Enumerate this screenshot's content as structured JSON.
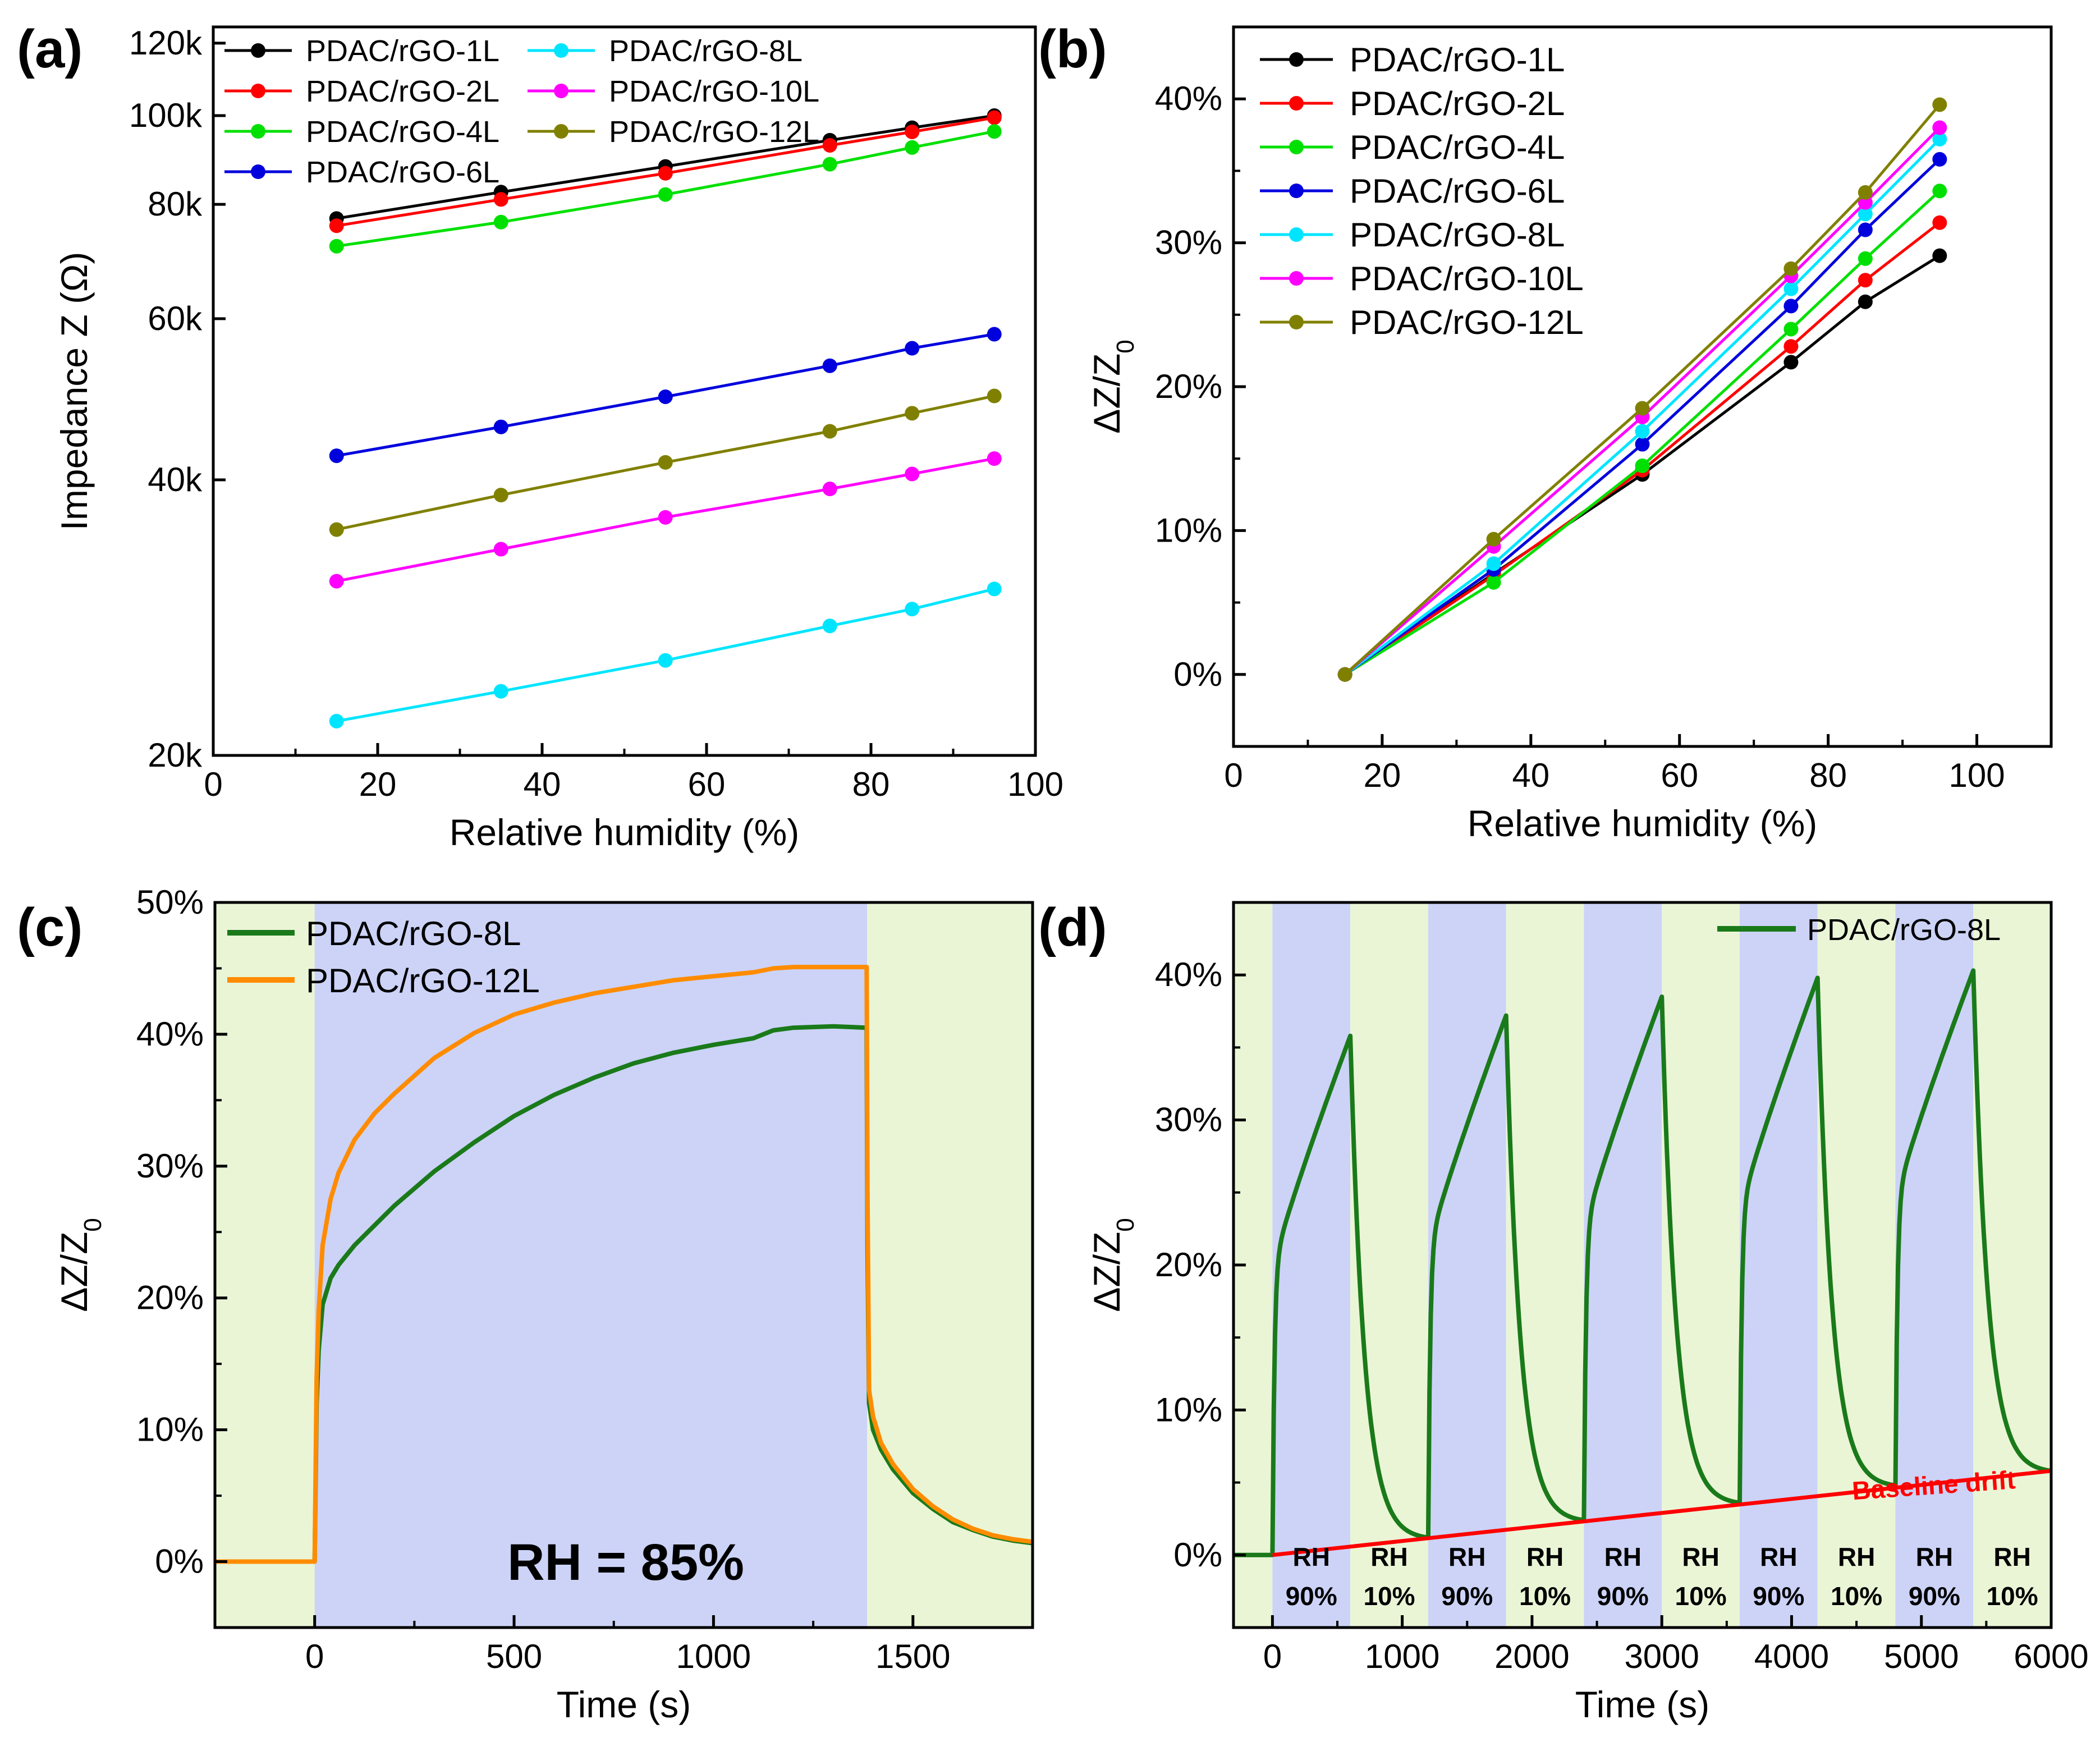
{
  "colors": {
    "1L": "#000000",
    "2L": "#ff0000",
    "4L": "#00e000",
    "6L": "#0000dd",
    "8L": "#00e5ff",
    "10L": "#ff00ff",
    "12L": "#808000",
    "green_dark": "#1a7a1a",
    "orange": "#ff8c00",
    "bg_blue": "#ccd3f7",
    "bg_green": "#eaf5d6",
    "drift": "#ff0000"
  },
  "chart_data": [
    {
      "panel": "(a)",
      "type": "line",
      "yscale": "log",
      "title": "",
      "xlabel": "Relative humidity (%)",
      "ylabel": "Impedance Z (Ω)",
      "xlim": [
        0,
        100
      ],
      "ylim": [
        20000,
        125000
      ],
      "xticks": [
        0,
        20,
        40,
        60,
        80,
        100
      ],
      "xtick_labels": [
        "0",
        "20",
        "40",
        "60",
        "80",
        "100"
      ],
      "yticks": [
        20000,
        40000,
        60000,
        80000,
        100000,
        120000
      ],
      "ytick_labels": [
        "20k",
        "40k",
        "60k",
        "80k",
        "100k",
        "120k"
      ],
      "legend_position": "top-left (two columns)",
      "x": [
        15,
        35,
        55,
        75,
        85,
        95
      ],
      "series": [
        {
          "name": "PDAC/rGO-1L",
          "color_key": "1L",
          "values": [
            77200,
            82500,
            88000,
            94000,
            97000,
            100000
          ]
        },
        {
          "name": "PDAC/rGO-2L",
          "color_key": "2L",
          "values": [
            75800,
            81000,
            86500,
            92800,
            96000,
            99500
          ]
        },
        {
          "name": "PDAC/rGO-4L",
          "color_key": "4L",
          "values": [
            72000,
            76500,
            82000,
            88500,
            92300,
            96100
          ]
        },
        {
          "name": "PDAC/rGO-6L",
          "color_key": "6L",
          "values": [
            42500,
            45700,
            49300,
            53300,
            55700,
            57700
          ]
        },
        {
          "name": "PDAC/rGO-8L",
          "color_key": "8L",
          "values": [
            21800,
            23500,
            25400,
            27700,
            28900,
            30400
          ]
        },
        {
          "name": "PDAC/rGO-10L",
          "color_key": "10L",
          "values": [
            31000,
            33600,
            36400,
            39100,
            40600,
            42200
          ]
        },
        {
          "name": "PDAC/rGO-12L",
          "color_key": "12L",
          "values": [
            35300,
            38500,
            41800,
            45200,
            47300,
            49400
          ]
        }
      ]
    },
    {
      "panel": "(b)",
      "type": "line",
      "title": "",
      "xlabel": "Relative humidity (%)",
      "ylabel_main": "ΔZ/Z",
      "ylabel_sub": "0",
      "xlim": [
        0,
        110
      ],
      "ylim": [
        -5,
        45
      ],
      "xticks": [
        0,
        20,
        40,
        60,
        80,
        100
      ],
      "xtick_labels": [
        "0",
        "20",
        "40",
        "60",
        "80",
        "100"
      ],
      "yticks": [
        0,
        10,
        20,
        30,
        40
      ],
      "ytick_labels": [
        "0%",
        "10%",
        "20%",
        "30%",
        "40%"
      ],
      "legend_position": "top-left",
      "x": [
        15,
        35,
        55,
        75,
        85,
        95
      ],
      "series": [
        {
          "name": "PDAC/rGO-1L",
          "color_key": "1L",
          "values": [
            0,
            7.0,
            13.9,
            21.7,
            25.9,
            29.1
          ]
        },
        {
          "name": "PDAC/rGO-2L",
          "color_key": "2L",
          "values": [
            0,
            6.9,
            14.2,
            22.8,
            27.4,
            31.4
          ]
        },
        {
          "name": "PDAC/rGO-4L",
          "color_key": "4L",
          "values": [
            0,
            6.4,
            14.5,
            24.0,
            28.9,
            33.6
          ]
        },
        {
          "name": "PDAC/rGO-6L",
          "color_key": "6L",
          "values": [
            0,
            7.3,
            16.0,
            25.6,
            30.9,
            35.8
          ]
        },
        {
          "name": "PDAC/rGO-8L",
          "color_key": "8L",
          "values": [
            0,
            7.7,
            16.9,
            26.8,
            32.0,
            37.2
          ]
        },
        {
          "name": "PDAC/rGO-10L",
          "color_key": "10L",
          "values": [
            0,
            8.9,
            17.9,
            27.7,
            32.8,
            38.0
          ]
        },
        {
          "name": "PDAC/rGO-12L",
          "color_key": "12L",
          "values": [
            0,
            9.4,
            18.5,
            28.2,
            33.5,
            39.6
          ]
        }
      ]
    },
    {
      "panel": "(c)",
      "type": "line",
      "title": "",
      "xlabel": "Time (s)",
      "ylabel_main": "ΔZ/Z",
      "ylabel_sub": "0",
      "xlim": [
        -250,
        1800
      ],
      "ylim": [
        -5,
        50
      ],
      "xticks": [
        0,
        500,
        1000,
        1500
      ],
      "xtick_labels": [
        "0",
        "500",
        "1000",
        "1500"
      ],
      "yticks": [
        0,
        10,
        20,
        30,
        40,
        50
      ],
      "ytick_labels": [
        "0%",
        "10%",
        "20%",
        "30%",
        "40%",
        "50%"
      ],
      "legend_position": "top-left",
      "annotation": "RH = 85%",
      "background_bands": [
        {
          "from": -250,
          "to": 0,
          "color_key": "bg_green"
        },
        {
          "from": 0,
          "to": 1385,
          "color_key": "bg_blue"
        },
        {
          "from": 1385,
          "to": 1800,
          "color_key": "bg_green"
        }
      ],
      "series": [
        {
          "name": "PDAC/rGO-8L",
          "color_key": "green_dark",
          "x": [
            -250,
            -1,
            0,
            5,
            10,
            20,
            40,
            60,
            100,
            150,
            200,
            300,
            400,
            500,
            600,
            700,
            800,
            900,
            1000,
            1100,
            1150,
            1200,
            1300,
            1384,
            1386,
            1390,
            1400,
            1420,
            1450,
            1500,
            1550,
            1600,
            1650,
            1700,
            1750,
            1800
          ],
          "y": [
            0,
            0,
            0,
            12,
            16,
            19.5,
            21.5,
            22.5,
            24,
            25.5,
            27,
            29.6,
            31.8,
            33.8,
            35.4,
            36.7,
            37.8,
            38.6,
            39.2,
            39.7,
            40.3,
            40.5,
            40.6,
            40.5,
            24,
            12,
            10,
            8.5,
            7,
            5.2,
            4,
            3,
            2.4,
            1.9,
            1.6,
            1.4
          ]
        },
        {
          "name": "PDAC/rGO-12L",
          "color_key": "orange",
          "x": [
            -250,
            -1,
            0,
            5,
            10,
            20,
            40,
            60,
            100,
            150,
            200,
            300,
            400,
            500,
            600,
            700,
            800,
            900,
            1000,
            1100,
            1150,
            1200,
            1300,
            1384,
            1386,
            1390,
            1400,
            1420,
            1450,
            1500,
            1550,
            1600,
            1650,
            1700,
            1750,
            1800
          ],
          "y": [
            0,
            0,
            0,
            14,
            19,
            24,
            27.5,
            29.5,
            32,
            34,
            35.5,
            38.2,
            40.1,
            41.5,
            42.4,
            43.1,
            43.6,
            44.1,
            44.4,
            44.7,
            45.0,
            45.1,
            45.1,
            45.1,
            28,
            13,
            11,
            9,
            7.4,
            5.5,
            4.2,
            3.2,
            2.5,
            2.0,
            1.7,
            1.5
          ]
        }
      ]
    },
    {
      "panel": "(d)",
      "type": "line",
      "title": "",
      "xlabel": "Time (s)",
      "ylabel_main": "ΔZ/Z",
      "ylabel_sub": "0",
      "xlim": [
        -300,
        6000
      ],
      "ylim": [
        -5,
        45
      ],
      "xticks": [
        0,
        1000,
        2000,
        3000,
        4000,
        5000,
        6000
      ],
      "xtick_labels": [
        "0",
        "1000",
        "2000",
        "3000",
        "4000",
        "5000",
        "6000"
      ],
      "yticks": [
        0,
        10,
        20,
        30,
        40
      ],
      "ytick_labels": [
        "0%",
        "10%",
        "20%",
        "30%",
        "40%"
      ],
      "legend_position": "top-right",
      "series_name": "PDAC/rGO-8L",
      "series_color_key": "green_dark",
      "cycles": [
        {
          "start": 0,
          "peak": 35.8,
          "end_value": 1.2
        },
        {
          "start": 1200,
          "peak": 37.2,
          "end_value": 2.4
        },
        {
          "start": 2400,
          "peak": 38.5,
          "end_value": 3.6
        },
        {
          "start": 3600,
          "peak": 39.8,
          "end_value": 4.8
        },
        {
          "start": 4800,
          "peak": 40.3,
          "end_value": 5.8
        }
      ],
      "half_period": 600,
      "baseline_drift": {
        "label": "Baseline drift",
        "x": [
          0,
          6000
        ],
        "y": [
          0,
          5.8
        ],
        "color_key": "drift"
      },
      "bands": [
        {
          "from": -300,
          "to": 0,
          "rh": "",
          "color_key": "bg_green"
        },
        {
          "from": 0,
          "to": 600,
          "rh": "90%",
          "color_key": "bg_blue"
        },
        {
          "from": 600,
          "to": 1200,
          "rh": "10%",
          "color_key": "bg_green"
        },
        {
          "from": 1200,
          "to": 1800,
          "rh": "90%",
          "color_key": "bg_blue"
        },
        {
          "from": 1800,
          "to": 2400,
          "rh": "10%",
          "color_key": "bg_green"
        },
        {
          "from": 2400,
          "to": 3000,
          "rh": "90%",
          "color_key": "bg_blue"
        },
        {
          "from": 3000,
          "to": 3600,
          "rh": "10%",
          "color_key": "bg_green"
        },
        {
          "from": 3600,
          "to": 4200,
          "rh": "90%",
          "color_key": "bg_blue"
        },
        {
          "from": 4200,
          "to": 4800,
          "rh": "10%",
          "color_key": "bg_green"
        },
        {
          "from": 4800,
          "to": 5400,
          "rh": "90%",
          "color_key": "bg_blue"
        },
        {
          "from": 5400,
          "to": 6000,
          "rh": "10%",
          "color_key": "bg_green"
        }
      ],
      "rh_prefix": "RH"
    }
  ]
}
